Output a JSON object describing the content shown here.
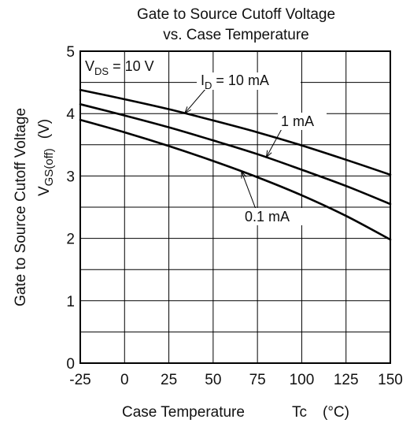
{
  "chart_data": {
    "type": "line",
    "title_line1": "Gate to Source Cutoff Voltage",
    "title_line2": "vs. Case Temperature",
    "xlabel": "Case Temperature",
    "xlabel_symbol": "Tc",
    "xlabel_unit": "(°C)",
    "ylabel": "Gate to Source Cutoff Voltage",
    "ylabel_symbol": "V",
    "ylabel_symbol_sub": "GS(off)",
    "ylabel_unit": "(V)",
    "xlim": [
      -25,
      150
    ],
    "ylim": [
      0,
      5
    ],
    "x_ticks": [
      -25,
      0,
      25,
      50,
      75,
      100,
      125,
      150
    ],
    "x_tick_labels": [
      "-25",
      "0",
      "25",
      "50",
      "75",
      "100",
      "125",
      "150"
    ],
    "y_ticks": [
      0,
      1,
      2,
      3,
      4,
      5
    ],
    "y_tick_labels": [
      "0",
      "1",
      "2",
      "3",
      "4",
      "5"
    ],
    "y_grid_step": 0.5,
    "grid": true,
    "condition_main": "V",
    "condition_sub": "DS",
    "condition_value": " = 10 V",
    "series": [
      {
        "label_main": "I",
        "label_sub": "D",
        "label_value": " = 10 mA",
        "x": [
          -25,
          0,
          25,
          50,
          75,
          100,
          125,
          150
        ],
        "y": [
          4.38,
          4.23,
          4.07,
          3.89,
          3.7,
          3.49,
          3.26,
          3.02
        ]
      },
      {
        "label_main": "",
        "label_sub": "",
        "label_value": "1 mA",
        "x": [
          -25,
          0,
          25,
          50,
          75,
          100,
          125,
          150
        ],
        "y": [
          4.15,
          3.97,
          3.78,
          3.57,
          3.35,
          3.1,
          2.84,
          2.55
        ]
      },
      {
        "label_main": "",
        "label_sub": "",
        "label_value": "0.1 mA",
        "x": [
          -25,
          0,
          25,
          50,
          75,
          100,
          125,
          150
        ],
        "y": [
          3.9,
          3.7,
          3.48,
          3.24,
          2.98,
          2.69,
          2.36,
          1.98
        ]
      }
    ]
  }
}
